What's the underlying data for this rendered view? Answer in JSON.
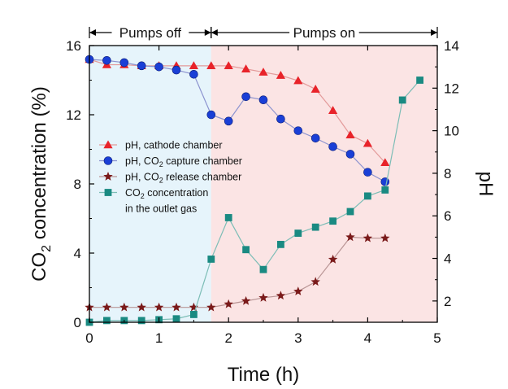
{
  "chart_data": {
    "type": "line",
    "xlabel": "Time (h)",
    "ylabel_left": {
      "base": "CO",
      "sub": "2",
      "rest": " concentration (%)"
    },
    "ylabel_right": "pH",
    "xlim": [
      0,
      5
    ],
    "ylim_left": [
      0,
      16
    ],
    "ylim_right": [
      1,
      14
    ],
    "xticks": [
      0,
      1,
      2,
      3,
      4,
      5
    ],
    "yticks_left": [
      0,
      4,
      8,
      12,
      16
    ],
    "yticks_right": [
      2,
      4,
      6,
      8,
      10,
      12,
      14
    ],
    "regions": [
      {
        "label": "Pumps off",
        "x0": 0,
        "x1": 1.75,
        "color": "#e6f4fb"
      },
      {
        "label": "Pumps on",
        "x0": 1.75,
        "x1": 5,
        "color": "#fbe4e4"
      }
    ],
    "series": [
      {
        "name": "pH, cathode chamber",
        "name_parts": [
          "pH, cathode chamber"
        ],
        "axis": "right",
        "marker": "triangle",
        "color": "#e8232a",
        "line": "#e39a9a",
        "x": [
          0,
          0.25,
          0.5,
          0.75,
          1,
          1.25,
          1.5,
          1.75,
          2,
          2.25,
          2.5,
          2.75,
          3,
          3.25,
          3.5,
          3.75,
          4,
          4.25
        ],
        "y": [
          13.35,
          13.1,
          13.1,
          13.05,
          13.05,
          13.05,
          13.05,
          13.05,
          13.05,
          12.9,
          12.75,
          12.6,
          12.35,
          11.95,
          10.95,
          9.8,
          9.4,
          8.5
        ]
      },
      {
        "name": "pH, CO2 capture chamber",
        "name_parts": [
          "pH, CO",
          "2",
          " capture chamber"
        ],
        "axis": "right",
        "marker": "circle",
        "color": "#1a3fd6",
        "line": "#8c93cf",
        "x": [
          0,
          0.25,
          0.5,
          0.75,
          1,
          1.25,
          1.5,
          1.75,
          2,
          2.25,
          2.5,
          2.75,
          3,
          3.25,
          3.5,
          3.75,
          4,
          4.25
        ],
        "y": [
          13.35,
          13.3,
          13.2,
          13.05,
          13.0,
          12.85,
          12.65,
          10.75,
          10.45,
          11.6,
          11.45,
          10.55,
          10.0,
          9.65,
          9.25,
          8.9,
          8.05,
          7.6
        ]
      },
      {
        "name": "pH, CO2 release chamber",
        "name_parts": [
          "pH, CO",
          "2",
          " release chamber"
        ],
        "axis": "right",
        "marker": "star",
        "color": "#7a1a1a",
        "line": "#b99595",
        "x": [
          0,
          0.25,
          0.5,
          0.75,
          1,
          1.25,
          1.5,
          1.75,
          2,
          2.25,
          2.5,
          2.75,
          3,
          3.25,
          3.5,
          3.75,
          4,
          4.25
        ],
        "y": [
          1.7,
          1.7,
          1.7,
          1.7,
          1.7,
          1.7,
          1.7,
          1.7,
          1.85,
          2.0,
          2.15,
          2.25,
          2.45,
          2.9,
          3.95,
          5.0,
          4.95,
          4.95
        ]
      },
      {
        "name": "CO2 concentration in the outlet gas",
        "name_parts": [
          "CO",
          "2",
          " concentration"
        ],
        "name_line2": "in the outlet gas",
        "axis": "left",
        "marker": "square",
        "color": "#1a8a82",
        "line": "#7cbdb6",
        "x": [
          0,
          0.25,
          0.5,
          0.75,
          1,
          1.25,
          1.5,
          1.75,
          2,
          2.25,
          2.5,
          2.75,
          3,
          3.25,
          3.5,
          3.75,
          4,
          4.25,
          4.5,
          4.75
        ],
        "y": [
          0,
          0.1,
          0.1,
          0.1,
          0.15,
          0.2,
          0.45,
          3.65,
          6.05,
          4.2,
          3.05,
          4.5,
          5.15,
          5.5,
          5.85,
          6.4,
          7.3,
          7.65,
          12.85,
          14.0
        ]
      }
    ]
  }
}
